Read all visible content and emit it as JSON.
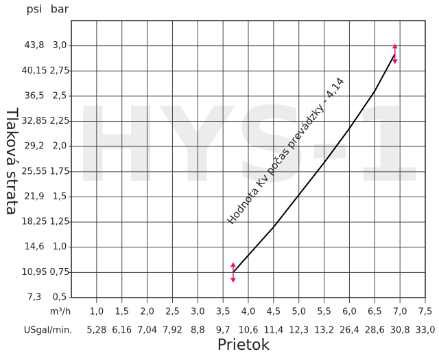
{
  "chart_data": {
    "type": "line",
    "watermark": "HYS-1",
    "annotation": "Hodnota Kv počas prevádzky - 4,14",
    "y_label": "Tlaková strata",
    "x_label": "Prietok",
    "y_unit": "bar",
    "y2_unit": "psi",
    "x_unit": "m³/h",
    "x2_unit": "USgal/min.",
    "xlim": [
      0.5,
      7.5
    ],
    "xticks": [
      {
        "value": 1.0,
        "label": "1,0"
      },
      {
        "value": 1.5,
        "label": "1,5"
      },
      {
        "value": 2.0,
        "label": "2,0"
      },
      {
        "value": 2.5,
        "label": "2,5"
      },
      {
        "value": 3.0,
        "label": "3,0"
      },
      {
        "value": 3.5,
        "label": "3,5"
      },
      {
        "value": 4.0,
        "label": "4,0"
      },
      {
        "value": 4.5,
        "label": "4,5"
      },
      {
        "value": 5.0,
        "label": "5,0"
      },
      {
        "value": 5.5,
        "label": "5,5"
      },
      {
        "value": 6.0,
        "label": "6,0"
      },
      {
        "value": 6.5,
        "label": "6,5"
      },
      {
        "value": 7.0,
        "label": "7,0"
      },
      {
        "value": 7.5,
        "label": "7,5"
      }
    ],
    "x2ticks": [
      {
        "value": 5.28,
        "label": "5,28"
      },
      {
        "value": 6.16,
        "label": "6,16"
      },
      {
        "value": 7.04,
        "label": "7,04"
      },
      {
        "value": 7.92,
        "label": "7,92"
      },
      {
        "value": 8.8,
        "label": "8,8"
      },
      {
        "value": 9.7,
        "label": "9,7"
      },
      {
        "value": 10.6,
        "label": "10,6"
      },
      {
        "value": 11.4,
        "label": "11,4"
      },
      {
        "value": 12.3,
        "label": "12,3"
      },
      {
        "value": 13.2,
        "label": "13,2"
      },
      {
        "value": 26.4,
        "label": "26,4"
      },
      {
        "value": 28.6,
        "label": "28,6"
      },
      {
        "value": 30.8,
        "label": "30,8"
      },
      {
        "value": 33.0,
        "label": "33,0"
      }
    ],
    "ylim": [
      0.5,
      3.25
    ],
    "yticks": [
      {
        "value": 0.5,
        "label": "0,5"
      },
      {
        "value": 0.75,
        "label": "0,75"
      },
      {
        "value": 1.0,
        "label": "1,0"
      },
      {
        "value": 1.25,
        "label": "1,25"
      },
      {
        "value": 1.5,
        "label": "1,5"
      },
      {
        "value": 1.75,
        "label": "1,75"
      },
      {
        "value": 2.0,
        "label": "2,0"
      },
      {
        "value": 2.25,
        "label": "2,25"
      },
      {
        "value": 2.5,
        "label": "2,5"
      },
      {
        "value": 2.75,
        "label": "2,75"
      },
      {
        "value": 3.0,
        "label": "3,0"
      }
    ],
    "y2lim": [
      7.3,
      47.45
    ],
    "y2ticks": [
      {
        "value": 7.3,
        "label": "7,3"
      },
      {
        "value": 10.95,
        "label": "10,95"
      },
      {
        "value": 14.6,
        "label": "14,6"
      },
      {
        "value": 18.25,
        "label": "18,25"
      },
      {
        "value": 21.9,
        "label": "21,9"
      },
      {
        "value": 25.55,
        "label": "25,55"
      },
      {
        "value": 29.2,
        "label": "29,2"
      },
      {
        "value": 32.85,
        "label": "32,85"
      },
      {
        "value": 36.5,
        "label": "36,5"
      },
      {
        "value": 40.15,
        "label": "40,15"
      },
      {
        "value": 43.8,
        "label": "43,8"
      }
    ],
    "grid": true,
    "series": [
      {
        "color": "#000000",
        "x": [
          3.7,
          4.0,
          4.5,
          5.0,
          5.5,
          6.0,
          6.5,
          6.9
        ],
        "values": [
          0.75,
          0.92,
          1.2,
          1.52,
          1.84,
          2.18,
          2.55,
          2.92
        ]
      }
    ],
    "marker_color": "#e0157a"
  }
}
